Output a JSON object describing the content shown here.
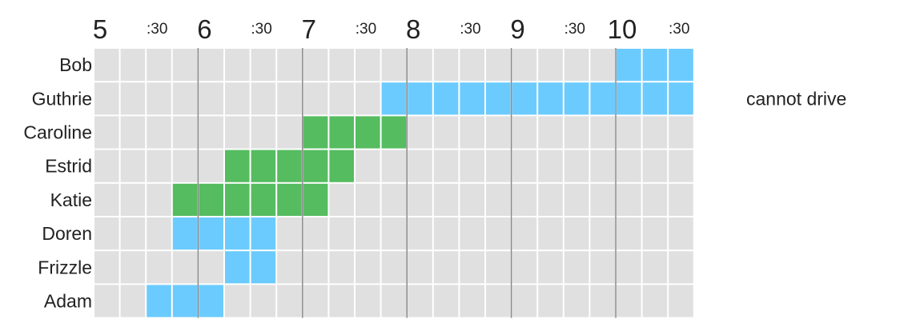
{
  "chart_data": {
    "type": "heatmap",
    "time_range": [
      5,
      10.75
    ],
    "slot_minutes": 15,
    "time_ticks": [
      {
        "time": 5,
        "label": "5",
        "major": true
      },
      {
        "time": 5.5,
        "label": ":30",
        "major": false
      },
      {
        "time": 6,
        "label": "6",
        "major": true
      },
      {
        "time": 6.5,
        "label": ":30",
        "major": false
      },
      {
        "time": 7,
        "label": "7",
        "major": true
      },
      {
        "time": 7.5,
        "label": ":30",
        "major": false
      },
      {
        "time": 8,
        "label": "8",
        "major": true
      },
      {
        "time": 8.5,
        "label": ":30",
        "major": false
      },
      {
        "time": 9,
        "label": "9",
        "major": true
      },
      {
        "time": 9.5,
        "label": ":30",
        "major": false
      },
      {
        "time": 10,
        "label": "10",
        "major": true
      },
      {
        "time": 10.5,
        "label": ":30",
        "major": false
      }
    ],
    "rows": [
      {
        "name": "Bob",
        "start": 10,
        "end": 10.75,
        "color": "#6ccbfe",
        "note": ""
      },
      {
        "name": "Guthrie",
        "start": 7.75,
        "end": 10.75,
        "color": "#6ccbfe",
        "note": "cannot drive"
      },
      {
        "name": "Caroline",
        "start": 7,
        "end": 8,
        "color": "#55bc60",
        "note": ""
      },
      {
        "name": "Estrid",
        "start": 6.25,
        "end": 7.5,
        "color": "#55bc60",
        "note": ""
      },
      {
        "name": "Katie",
        "start": 5.75,
        "end": 7.25,
        "color": "#55bc60",
        "note": ""
      },
      {
        "name": "Doren",
        "start": 5.75,
        "end": 6.75,
        "color": "#6ccbfe",
        "note": ""
      },
      {
        "name": "Frizzle",
        "start": 6.25,
        "end": 6.75,
        "color": "#6ccbfe",
        "note": ""
      },
      {
        "name": "Adam",
        "start": 5.5,
        "end": 6.25,
        "color": "#6ccbfe",
        "note": ""
      }
    ],
    "empty_color": "#e0e0e0",
    "hour_line_color": "#888888"
  }
}
